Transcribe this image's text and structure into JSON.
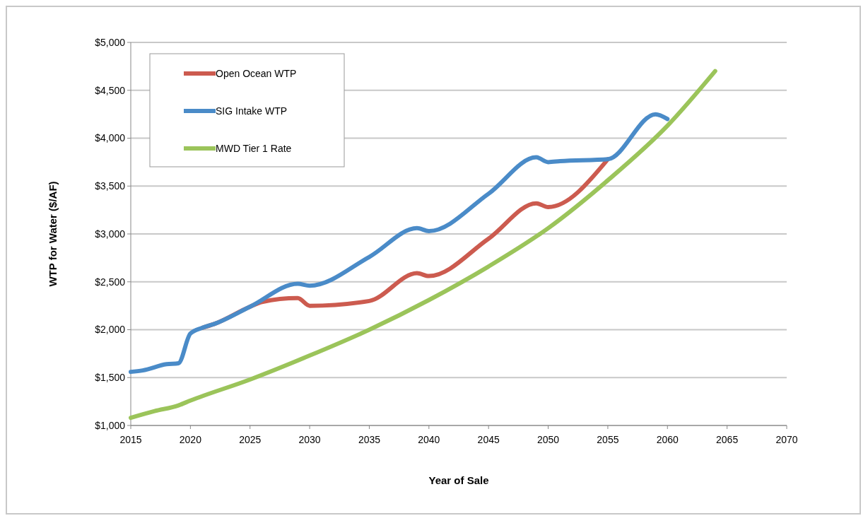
{
  "chart_data": {
    "type": "line",
    "xlabel": "Year of Sale",
    "ylabel": "WTP for Water ($/AF)",
    "xlim": [
      2015,
      2070
    ],
    "xticks": [
      2015,
      2020,
      2025,
      2030,
      2035,
      2040,
      2045,
      2050,
      2055,
      2060,
      2065,
      2070
    ],
    "ylim": [
      1000,
      5000
    ],
    "yticks": [
      {
        "value": 1000,
        "label": "$1,000"
      },
      {
        "value": 1500,
        "label": "$1,500"
      },
      {
        "value": 2000,
        "label": "$2,000"
      },
      {
        "value": 2500,
        "label": "$2,500"
      },
      {
        "value": 3000,
        "label": "$3,000"
      },
      {
        "value": 3500,
        "label": "$3,500"
      },
      {
        "value": 4000,
        "label": "$4,000"
      },
      {
        "value": 4500,
        "label": "$4,500"
      },
      {
        "value": 5000,
        "label": "$5,000"
      }
    ],
    "grid": "y",
    "legend": "top left",
    "marker": "none",
    "line_style": "solid",
    "series": [
      {
        "name": "Open Ocean WTP",
        "color": "#cc5b4f",
        "x": [
          2021,
          2022,
          2025,
          2026,
          2029,
          2030,
          2035,
          2039,
          2040,
          2045,
          2049,
          2050,
          2055
        ],
        "values": [
          2020,
          2060,
          2240,
          2290,
          2330,
          2250,
          2300,
          2590,
          2560,
          2950,
          3320,
          3280,
          3780
        ]
      },
      {
        "name": "SIG Intake WTP",
        "color": "#4a8bc8",
        "x": [
          2015,
          2016,
          2018,
          2019,
          2020,
          2021,
          2022,
          2025,
          2029,
          2030,
          2035,
          2039,
          2040,
          2045,
          2049,
          2050,
          2051,
          2055,
          2059,
          2060
        ],
        "values": [
          1560,
          1575,
          1640,
          1650,
          1960,
          2020,
          2060,
          2240,
          2480,
          2460,
          2760,
          3060,
          3030,
          3420,
          3800,
          3750,
          3760,
          3780,
          4250,
          4200
        ]
      },
      {
        "name": "MWD Tier 1 Rate",
        "color": "#9bc45a",
        "x": [
          2015,
          2017,
          2019,
          2020,
          2025,
          2030,
          2035,
          2040,
          2045,
          2050,
          2055,
          2060,
          2064
        ],
        "values": [
          1080,
          1150,
          1210,
          1260,
          1480,
          1730,
          2000,
          2310,
          2660,
          3060,
          3560,
          4130,
          4700
        ]
      }
    ]
  }
}
